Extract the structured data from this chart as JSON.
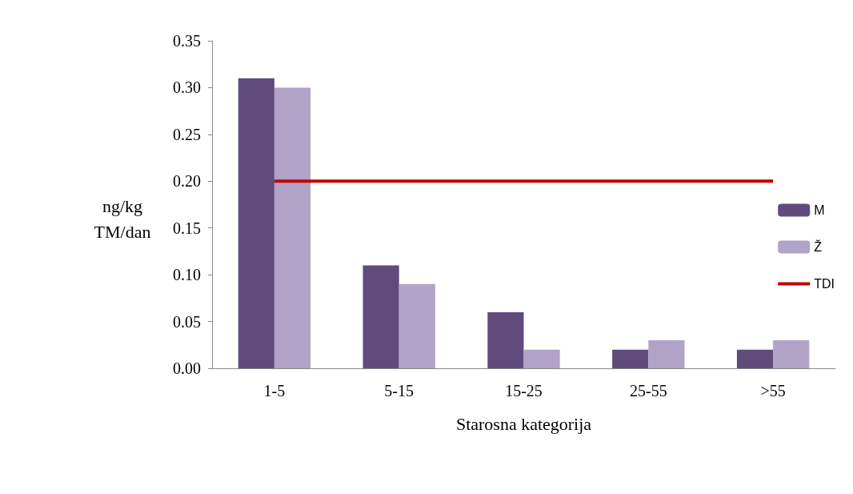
{
  "chart_data": {
    "type": "bar",
    "xlabel": "Starosna kategorija",
    "ylabel": "ng/kg\nTM/dan",
    "categories": [
      "1-5",
      "5-15",
      "15-25",
      "25-55",
      ">55"
    ],
    "series": [
      {
        "name": "M",
        "color": "#5f4b7c",
        "values": [
          0.31,
          0.11,
          0.06,
          0.02,
          0.02
        ]
      },
      {
        "name": "Ž",
        "color": "#b1a2c8",
        "values": [
          0.3,
          0.09,
          0.02,
          0.03,
          0.03
        ]
      },
      {
        "name": "TDI",
        "type": "line",
        "color": "#c00000",
        "values": [
          0.2,
          0.2,
          0.2,
          0.2,
          0.2
        ]
      }
    ],
    "ylim": [
      0,
      0.35
    ],
    "yticks": [
      {
        "value": 0,
        "label": "0.00"
      },
      {
        "value": 0.05,
        "label": "0.05"
      },
      {
        "value": 0.1,
        "label": "0.10"
      },
      {
        "value": 0.15,
        "label": "0.15"
      },
      {
        "value": 0.2,
        "label": "0.20"
      },
      {
        "value": 0.25,
        "label": "0.25"
      },
      {
        "value": 0.3,
        "label": "0.30"
      },
      {
        "value": 0.35,
        "label": "0.35"
      }
    ],
    "grid": false,
    "legend": "right"
  }
}
